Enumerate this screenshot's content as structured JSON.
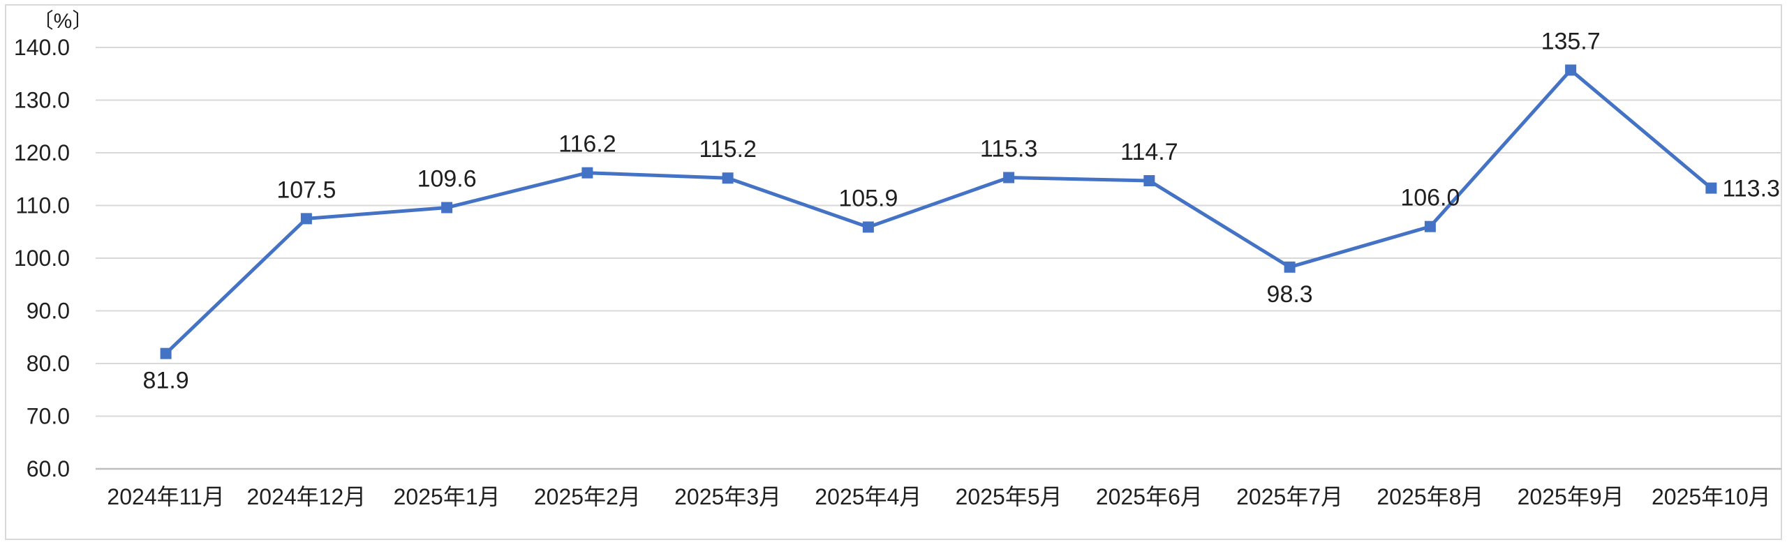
{
  "chart_data": {
    "type": "line",
    "title": "",
    "unit_label": "〔%〕",
    "categories": [
      "2024年11月",
      "2024年12月",
      "2025年1月",
      "2025年2月",
      "2025年3月",
      "2025年4月",
      "2025年5月",
      "2025年6月",
      "2025年7月",
      "2025年8月",
      "2025年9月",
      "2025年10月"
    ],
    "values": [
      81.9,
      107.5,
      109.6,
      116.2,
      115.2,
      105.9,
      115.3,
      114.7,
      98.3,
      106.0,
      135.7,
      113.3
    ],
    "data_labels": [
      "81.9",
      "107.5",
      "109.6",
      "116.2",
      "115.2",
      "105.9",
      "115.3",
      "114.7",
      "98.3",
      "106.0",
      "135.7",
      "113.3"
    ],
    "label_placements": [
      "below",
      "above",
      "above",
      "above",
      "above",
      "above",
      "above",
      "above",
      "below",
      "above",
      "above",
      "right"
    ],
    "xlabel": "",
    "ylabel": "〔%〕",
    "ylim": [
      60.0,
      140.0
    ],
    "ytick_step": 10.0,
    "ytick_labels": [
      "140.0",
      "130.0",
      "120.0",
      "110.0",
      "100.0",
      "90.0",
      "80.0",
      "70.0",
      "60.0"
    ],
    "grid": true,
    "legend": "none",
    "marker": "square",
    "colors": {
      "line": "#4472C4",
      "marker": "#4472C4",
      "gridline": "#D9D9D9",
      "axis_line": "#BFBFBF",
      "chart_border": "#D9D9D9",
      "text": "#1F1F1F"
    }
  }
}
